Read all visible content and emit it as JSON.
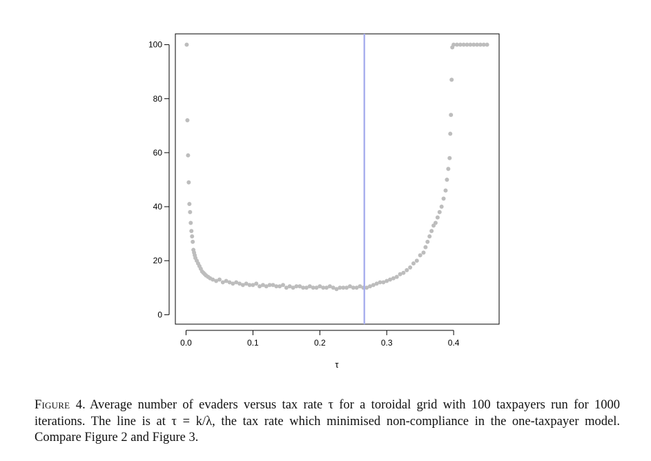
{
  "figure": {
    "caption_label": "Figure 4.",
    "caption_text": "Average number of evaders versus tax rate τ for a toroidal grid with 100 taxpayers run for 1000 iterations. The line is at τ = k/λ, the tax rate which minimised non-compliance in the one-taxpayer model. Compare Figure 2 and Figure 3."
  },
  "chart_data": {
    "type": "scatter",
    "title": "",
    "xlabel": "τ",
    "ylabel": "",
    "xlim": [
      -0.016,
      0.468
    ],
    "ylim": [
      -3.5,
      104
    ],
    "x_ticks": [
      0.0,
      0.1,
      0.2,
      0.3,
      0.4
    ],
    "x_tick_labels": [
      "0.0",
      "0.1",
      "0.2",
      "0.3",
      "0.4"
    ],
    "y_ticks": [
      0,
      20,
      40,
      60,
      80,
      100
    ],
    "y_tick_labels": [
      "0",
      "20",
      "40",
      "60",
      "80",
      "100"
    ],
    "grid": false,
    "point_color": "#bdbdbd",
    "vline": {
      "x": 0.2665,
      "color": "#aab0ee"
    },
    "series": [
      {
        "x": [
          0.001,
          0.002,
          0.003,
          0.004,
          0.005,
          0.006,
          0.007,
          0.008,
          0.009,
          0.01,
          0.011,
          0.012,
          0.013,
          0.014,
          0.016,
          0.018,
          0.02,
          0.022,
          0.024,
          0.026,
          0.028,
          0.03,
          0.033,
          0.036,
          0.04,
          0.045,
          0.05,
          0.055,
          0.06,
          0.065,
          0.07,
          0.075,
          0.08,
          0.085,
          0.09,
          0.095,
          0.1,
          0.105,
          0.11,
          0.115,
          0.12,
          0.125,
          0.13,
          0.135,
          0.14,
          0.145,
          0.15,
          0.155,
          0.16,
          0.165,
          0.17,
          0.175,
          0.18,
          0.185,
          0.19,
          0.195,
          0.2,
          0.205,
          0.21,
          0.215,
          0.22,
          0.225,
          0.23,
          0.235,
          0.24,
          0.245,
          0.25,
          0.255,
          0.26,
          0.265,
          0.27,
          0.275,
          0.28,
          0.285,
          0.29,
          0.295,
          0.3,
          0.305,
          0.31,
          0.315,
          0.32,
          0.325,
          0.33,
          0.335,
          0.34,
          0.345,
          0.35,
          0.355,
          0.358,
          0.361,
          0.364,
          0.367,
          0.37,
          0.373,
          0.376,
          0.379,
          0.382,
          0.385,
          0.388,
          0.39,
          0.392,
          0.394,
          0.395,
          0.396,
          0.397,
          0.398,
          0.4,
          0.405,
          0.41,
          0.415,
          0.42,
          0.425,
          0.43,
          0.435,
          0.44,
          0.445,
          0.45
        ],
        "y": [
          100,
          72,
          59,
          49,
          41,
          38,
          34,
          31,
          29,
          27,
          24,
          23,
          22,
          21,
          20,
          19,
          18,
          17,
          16,
          15.5,
          15,
          14.5,
          14,
          13.5,
          13,
          12.5,
          13,
          12,
          12.5,
          12,
          11.5,
          12,
          11.5,
          11,
          11.5,
          11,
          11,
          11.5,
          10.5,
          11,
          10.5,
          11,
          11,
          10.5,
          10.5,
          11,
          10,
          10.5,
          10,
          10.5,
          10.5,
          10,
          10,
          10.5,
          10,
          10,
          10.5,
          10,
          10,
          10.5,
          10,
          9.5,
          10,
          10,
          10,
          10.5,
          10,
          10,
          10.5,
          10,
          10,
          10.5,
          11,
          11.5,
          12,
          12,
          12.5,
          13,
          13.5,
          14,
          15,
          15.5,
          16.5,
          17.5,
          19,
          20,
          22,
          23,
          25,
          27,
          29,
          31,
          33,
          34,
          36,
          38,
          40,
          43,
          46,
          50,
          54,
          58,
          67,
          74,
          87,
          99,
          100,
          100,
          100,
          100,
          100,
          100,
          100,
          100,
          100,
          100,
          100
        ]
      }
    ]
  }
}
